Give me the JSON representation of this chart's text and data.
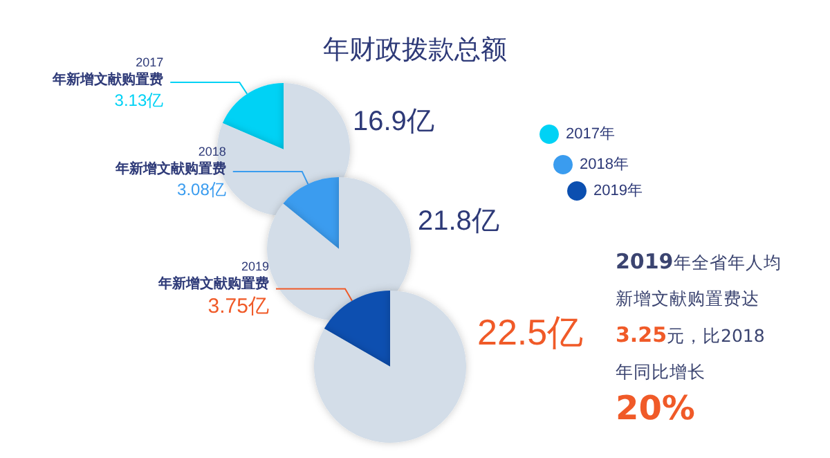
{
  "chart_data": [
    {
      "type": "pie",
      "title": "年财政拨款总额",
      "categories": [
        "2017年",
        null
      ],
      "values": [
        3.13,
        13.77
      ],
      "colors": [
        "#00d2f5",
        "#d3dde8"
      ],
      "value_labels": [
        "3.13亿",
        null
      ],
      "annotations": [
        "2017",
        "年新增文献购置费",
        "16.9亿"
      ],
      "legend": "right"
    },
    {
      "type": "pie",
      "categories": [
        "2018年",
        null
      ],
      "values": [
        3.08,
        18.72
      ],
      "colors": [
        "#3a9cef",
        "#d3dde8"
      ],
      "value_labels": [
        "3.08亿",
        null
      ],
      "annotations": [
        "2018",
        "年新增文献购置费",
        "21.8亿"
      ],
      "legend": "right"
    },
    {
      "type": "pie",
      "categories": [
        "2019年",
        null
      ],
      "values": [
        3.75,
        18.75
      ],
      "colors": [
        "#0b4fb0",
        "#d3dde8"
      ],
      "value_labels": [
        "3.75亿",
        null
      ],
      "annotations": [
        "2019",
        "年新增文献购置费",
        "22.5亿"
      ],
      "legend": "right"
    },
    {
      "type": "other",
      "annotations": [
        "2019年全省年人均新增文献购置费达3.25元，比2018年同比增长20%"
      ]
    }
  ]
}
